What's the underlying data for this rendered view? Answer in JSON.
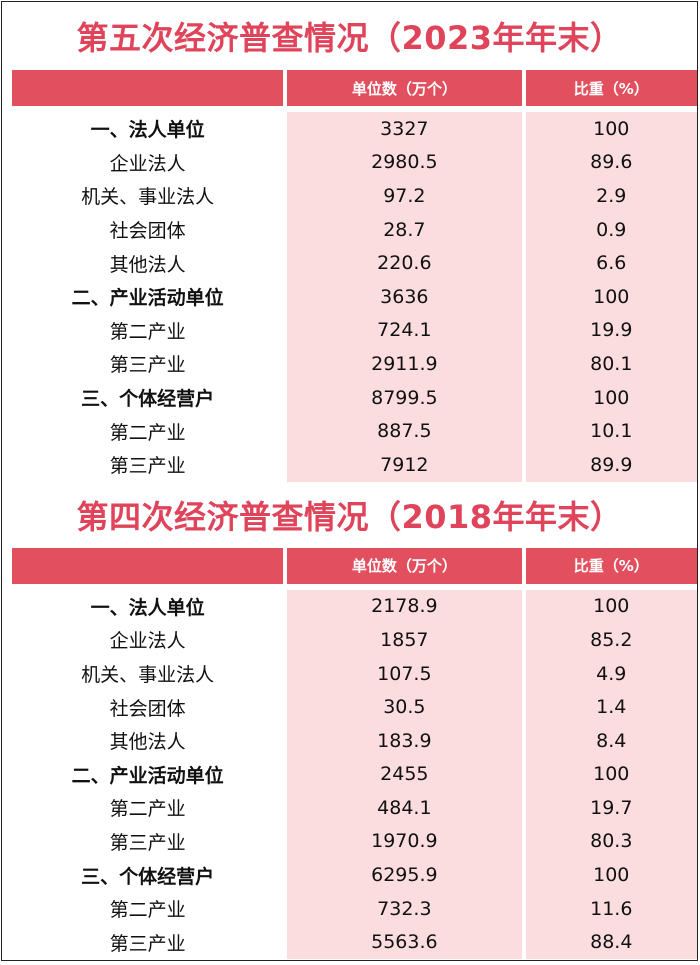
{
  "sections": [
    {
      "title": "第五次经济普查情况（2023年年末）",
      "header": {
        "col1": "",
        "col2": "单位数（万个）",
        "col3": "比重（%）"
      },
      "rows": [
        {
          "name": "一、法人单位",
          "count": "3327",
          "share": "100",
          "bold": true
        },
        {
          "name": "企业法人",
          "count": "2980.5",
          "share": "89.6",
          "bold": false
        },
        {
          "name": "机关、事业法人",
          "count": "97.2",
          "share": "2.9",
          "bold": false
        },
        {
          "name": "社会团体",
          "count": "28.7",
          "share": "0.9",
          "bold": false
        },
        {
          "name": "其他法人",
          "count": "220.6",
          "share": "6.6",
          "bold": false
        },
        {
          "name": "二、产业活动单位",
          "count": "3636",
          "share": "100",
          "bold": true
        },
        {
          "name": "第二产业",
          "count": "724.1",
          "share": "19.9",
          "bold": false
        },
        {
          "name": "第三产业",
          "count": "2911.9",
          "share": "80.1",
          "bold": false
        },
        {
          "name": "三、个体经营户",
          "count": "8799.5",
          "share": "100",
          "bold": true
        },
        {
          "name": "第二产业",
          "count": "887.5",
          "share": "10.1",
          "bold": false
        },
        {
          "name": "第三产业",
          "count": "7912",
          "share": "89.9",
          "bold": false
        }
      ]
    },
    {
      "title": "第四次经济普查情况（2018年年末）",
      "header": {
        "col1": "",
        "col2": "单位数（万个）",
        "col3": "比重（%）"
      },
      "rows": [
        {
          "name": "一、法人单位",
          "count": "2178.9",
          "share": "100",
          "bold": true
        },
        {
          "name": "企业法人",
          "count": "1857",
          "share": "85.2",
          "bold": false
        },
        {
          "name": "机关、事业法人",
          "count": "107.5",
          "share": "4.9",
          "bold": false
        },
        {
          "name": "社会团体",
          "count": "30.5",
          "share": "1.4",
          "bold": false
        },
        {
          "name": "其他法人",
          "count": "183.9",
          "share": "8.4",
          "bold": false
        },
        {
          "name": "二、产业活动单位",
          "count": "2455",
          "share": "100",
          "bold": true
        },
        {
          "name": "第二产业",
          "count": "484.1",
          "share": "19.7",
          "bold": false
        },
        {
          "name": "第三产业",
          "count": "1970.9",
          "share": "80.3",
          "bold": false
        },
        {
          "name": "三、个体经营户",
          "count": "6295.9",
          "share": "100",
          "bold": true
        },
        {
          "name": "第二产业",
          "count": "732.3",
          "share": "11.6",
          "bold": false
        },
        {
          "name": "第三产业",
          "count": "5563.6",
          "share": "88.4",
          "bold": false
        }
      ]
    }
  ]
}
